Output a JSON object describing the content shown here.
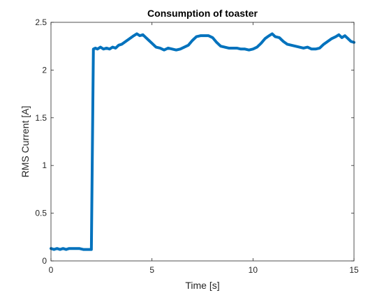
{
  "chart_data": {
    "type": "line",
    "title": "Consumption of toaster",
    "xlabel": "Time [s]",
    "ylabel": "RMS Current [A]",
    "xlim": [
      0,
      15
    ],
    "ylim": [
      0,
      2.5
    ],
    "xticks": [
      0,
      5,
      10,
      15
    ],
    "yticks": [
      0,
      0.5,
      1,
      1.5,
      2,
      2.5
    ],
    "xtick_labels": [
      "0",
      "5",
      "10",
      "15"
    ],
    "ytick_labels": [
      "0",
      "0.5",
      "1",
      "1.5",
      "2",
      "2.5"
    ],
    "grid": false,
    "legend": "none",
    "line_color": "#0072BD",
    "series": [
      {
        "x": [
          0.0,
          0.15,
          0.3,
          0.45,
          0.6,
          0.75,
          0.9,
          1.05,
          1.2,
          1.4,
          1.6,
          1.8,
          1.95,
          2.0,
          2.1,
          2.2,
          2.3,
          2.45,
          2.6,
          2.75,
          2.9,
          3.05,
          3.2,
          3.35,
          3.5,
          3.7,
          3.9,
          4.1,
          4.25,
          4.4,
          4.55,
          4.7,
          4.85,
          5.0,
          5.2,
          5.4,
          5.6,
          5.8,
          6.0,
          6.2,
          6.4,
          6.6,
          6.8,
          7.0,
          7.2,
          7.4,
          7.6,
          7.8,
          8.0,
          8.2,
          8.4,
          8.6,
          8.8,
          9.0,
          9.2,
          9.4,
          9.6,
          9.8,
          10.0,
          10.2,
          10.4,
          10.6,
          10.8,
          10.95,
          11.1,
          11.3,
          11.5,
          11.7,
          11.9,
          12.1,
          12.3,
          12.5,
          12.7,
          12.9,
          13.1,
          13.3,
          13.5,
          13.7,
          13.9,
          14.1,
          14.25,
          14.4,
          14.55,
          14.7,
          14.85,
          15.0
        ],
        "y": [
          0.13,
          0.12,
          0.13,
          0.12,
          0.13,
          0.12,
          0.13,
          0.13,
          0.13,
          0.13,
          0.12,
          0.12,
          0.12,
          0.12,
          2.22,
          2.23,
          2.22,
          2.24,
          2.22,
          2.23,
          2.22,
          2.24,
          2.23,
          2.26,
          2.27,
          2.3,
          2.33,
          2.36,
          2.38,
          2.36,
          2.37,
          2.34,
          2.31,
          2.28,
          2.24,
          2.23,
          2.21,
          2.23,
          2.22,
          2.21,
          2.22,
          2.24,
          2.26,
          2.31,
          2.35,
          2.36,
          2.36,
          2.36,
          2.34,
          2.29,
          2.25,
          2.24,
          2.23,
          2.23,
          2.23,
          2.22,
          2.22,
          2.21,
          2.22,
          2.24,
          2.28,
          2.33,
          2.36,
          2.38,
          2.35,
          2.34,
          2.3,
          2.27,
          2.26,
          2.25,
          2.24,
          2.23,
          2.24,
          2.22,
          2.22,
          2.23,
          2.27,
          2.3,
          2.33,
          2.35,
          2.37,
          2.34,
          2.36,
          2.33,
          2.3,
          2.29
        ]
      }
    ]
  }
}
